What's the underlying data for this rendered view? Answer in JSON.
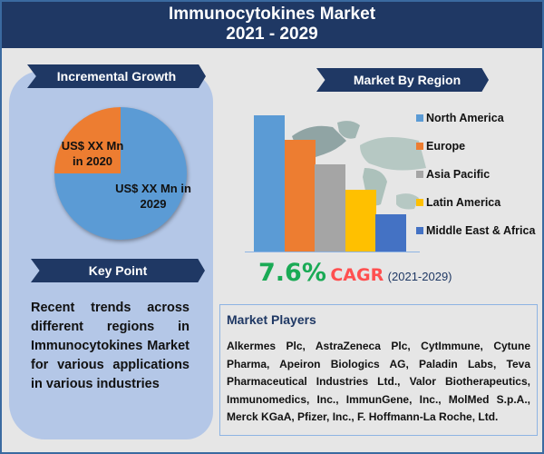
{
  "header": {
    "title_line1": "Immunocytokines Market",
    "title_line2": "2021 - 2029"
  },
  "incremental_growth": {
    "label": "Incremental Growth",
    "slices": [
      {
        "label": "US$ XX Mn in 2020",
        "line1": "US$ XX Mn",
        "line2": "in 2020",
        "color": "#ed7d31"
      },
      {
        "label": "US$ XX Mn in 2029",
        "line1": "US$ XX Mn in",
        "line2": "2029",
        "color": "#5b9bd5"
      }
    ]
  },
  "key_point": {
    "label": "Key Point",
    "text": "Recent trends across different regions in Immunocytokines Market for various applications in various industries"
  },
  "market_by_region": {
    "label": "Market By Region",
    "background": "world-map-image"
  },
  "cagr": {
    "value": "7.6%",
    "label": "CAGR",
    "period": "(2021-2029)"
  },
  "market_players": {
    "title": "Market Players",
    "text": "Alkermes Plc, AstraZeneca Plc, CytImmune, Cytune Pharma, Apeiron Biologics AG, Paladin Labs, Teva Pharmaceutical Industries Ltd., Valor Biotherapeutics, Immunomedics, Inc., ImmunGene, Inc., MolMed S.p.A., Merck KGaA, Pfizer, Inc., F. Hoffmann-La Roche, Ltd."
  },
  "chart_data": [
    {
      "type": "pie",
      "title": "Incremental Growth",
      "categories": [
        "US$ XX Mn in 2020",
        "US$ XX Mn in 2029"
      ],
      "values": [
        25,
        75
      ],
      "colors": [
        "#ed7d31",
        "#5b9bd5"
      ]
    },
    {
      "type": "bar",
      "title": "Market By Region",
      "categories": [
        "North America",
        "Europe",
        "Asia Pacific",
        "Latin America",
        "Middle East & Africa"
      ],
      "values": [
        150,
        123,
        96,
        68,
        41
      ],
      "colors": [
        "#5b9bd5",
        "#ed7d31",
        "#a5a5a5",
        "#ffc000",
        "#4472c4"
      ],
      "xlabel": "",
      "ylabel": "",
      "axis_ticks": false,
      "grid": false,
      "legend_position": "right",
      "note": "Relative bar heights in pixels; no numeric axis shown"
    }
  ]
}
